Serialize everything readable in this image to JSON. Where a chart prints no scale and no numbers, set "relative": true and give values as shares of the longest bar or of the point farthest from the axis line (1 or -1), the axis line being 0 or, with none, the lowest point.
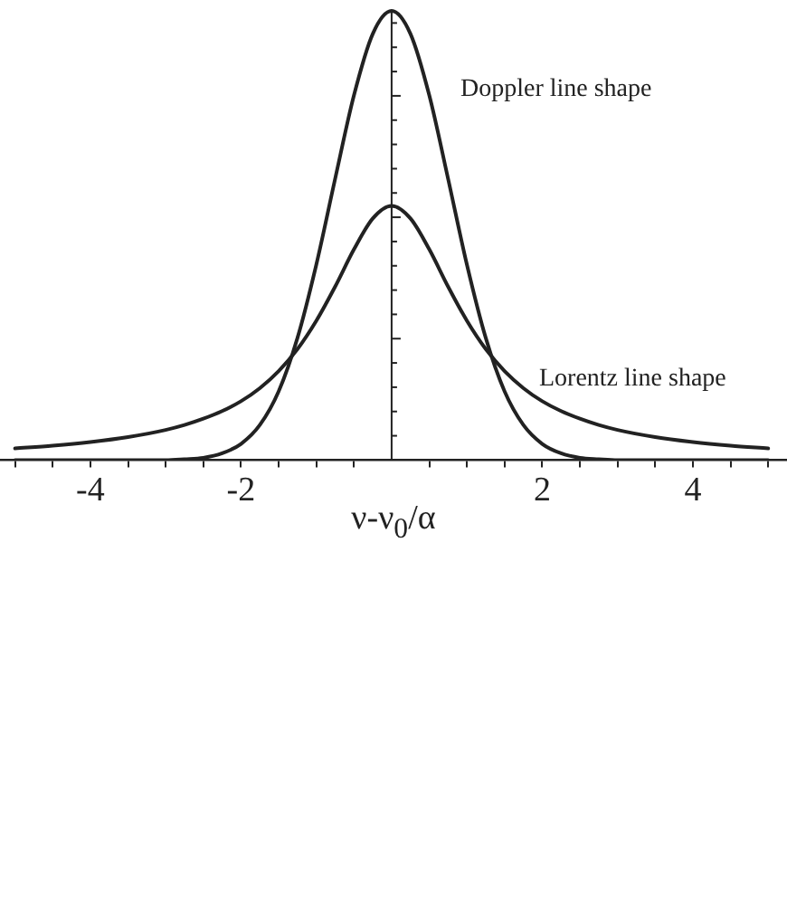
{
  "chart_data": {
    "type": "line",
    "relative": true,
    "xlabel": "ν-ν$_{0}$/α",
    "xlim": [
      -5.2,
      5.25
    ],
    "xticks": [
      {
        "value": -5,
        "label": null
      },
      {
        "value": -4.5,
        "label": null
      },
      -4,
      {
        "value": -3.5,
        "label": null
      },
      {
        "value": -3,
        "label": null
      },
      {
        "value": -2.5,
        "label": null
      },
      -2,
      {
        "value": -1.5,
        "label": null
      },
      {
        "value": -1,
        "label": null
      },
      {
        "value": -0.5,
        "label": null
      },
      {
        "value": 0.5,
        "label": null
      },
      {
        "value": 1,
        "label": null
      },
      {
        "value": 1.5,
        "label": null
      },
      2,
      {
        "value": 2.5,
        "label": null
      },
      {
        "value": 3,
        "label": null
      },
      {
        "value": 3.5,
        "label": null
      },
      4,
      {
        "value": 4.5,
        "label": null
      },
      {
        "value": 5,
        "label": null
      }
    ],
    "x": [
      -5,
      -4.5,
      -4,
      -3.5,
      -3,
      -2.75,
      -2.5,
      -2.25,
      -2,
      -1.75,
      -1.5,
      -1.25,
      -1,
      -0.75,
      -0.5,
      -0.25,
      0,
      0.25,
      0.5,
      0.75,
      1,
      1.25,
      1.5,
      1.75,
      2,
      2.25,
      2.5,
      2.75,
      3,
      3.5,
      4,
      4.5,
      5
    ],
    "legend": "right",
    "grid": false,
    "marker": "none",
    "line_style": "solid",
    "series": [
      {
        "name": "Doppler line shape",
        "color": "#222222",
        "values": [
          0,
          0,
          0,
          0,
          0,
          0.002,
          0.005,
          0.015,
          0.036,
          0.078,
          0.153,
          0.272,
          0.435,
          0.626,
          0.812,
          0.949,
          1,
          0.949,
          0.812,
          0.626,
          0.435,
          0.272,
          0.153,
          0.078,
          0.036,
          0.015,
          0.005,
          0.002,
          0,
          0,
          0,
          0,
          0
        ]
      },
      {
        "name": "Lorentz line shape",
        "color": "#222222",
        "values": [
          0.026,
          0.032,
          0.04,
          0.051,
          0.067,
          0.078,
          0.092,
          0.109,
          0.131,
          0.16,
          0.198,
          0.247,
          0.31,
          0.386,
          0.469,
          0.538,
          0.566,
          0.538,
          0.469,
          0.386,
          0.31,
          0.247,
          0.198,
          0.16,
          0.131,
          0.109,
          0.092,
          0.078,
          0.067,
          0.051,
          0.04,
          0.032,
          0.026
        ]
      }
    ]
  }
}
